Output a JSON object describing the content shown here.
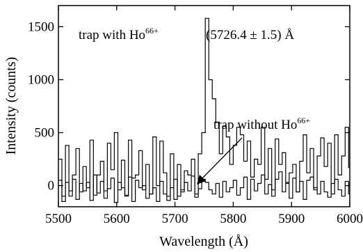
{
  "chart_data": {
    "type": "line",
    "xlabel": "Wavelength (Å)",
    "ylabel": "Intensity (counts)",
    "xlim": [
      5500,
      6000
    ],
    "ylim": [
      -200,
      1700
    ],
    "xticks": [
      5500,
      5600,
      5700,
      5800,
      5900,
      6000
    ],
    "yticks": [
      0,
      500,
      1000,
      1500
    ],
    "x_tick_labels": [
      "5500",
      "5600",
      "5700",
      "5800",
      "5900",
      "6000"
    ],
    "y_tick_labels": [
      "0",
      "500",
      "1000",
      "1500"
    ],
    "grid": false,
    "legend": "none",
    "step": 6,
    "annotations": {
      "with_label": "trap with Ho",
      "with_sup": "66+",
      "peak_label": "(5726.4 ± 1.5) Å",
      "without_label": "trap without Ho",
      "without_sup": "66+"
    },
    "series": [
      {
        "x_start": 5500,
        "values": [
          250,
          -100,
          380,
          -50,
          100,
          350,
          -60,
          180,
          -20,
          430,
          -90,
          100,
          230,
          -50,
          400,
          150,
          500,
          -40,
          240,
          -100,
          430,
          70,
          100,
          330,
          -40,
          200,
          -80,
          460,
          0,
          420,
          120,
          -100,
          300,
          -130,
          200,
          -60,
          140,
          100,
          250,
          -80,
          300,
          500,
          1580,
          1000,
          820,
          600,
          300,
          560,
          460,
          200,
          380,
          550,
          480,
          230,
          420,
          80,
          250,
          200,
          550,
          60,
          350,
          -40,
          440,
          200,
          310,
          30,
          120,
          200,
          -60,
          230,
          480,
          120,
          350,
          -40,
          280,
          450,
          180,
          400,
          -80,
          480,
          100,
          280,
          550,
          170,
          -80,
          200,
          580,
          100,
          20
        ]
      },
      {
        "x_start": 5500,
        "values": [
          50,
          -150,
          30,
          -100,
          60,
          -130,
          20,
          -50,
          30,
          -140,
          100,
          -70,
          40,
          -120,
          -30,
          70,
          -160,
          30,
          -20,
          -90,
          80,
          -150,
          50,
          -20,
          0,
          -120,
          -80,
          -20,
          -150,
          40,
          -80,
          -140,
          -20,
          60,
          -100,
          -40,
          30,
          -50,
          90,
          -110,
          -30,
          60,
          30,
          -40,
          -80,
          20,
          -110,
          40,
          -60,
          -20,
          50,
          -90,
          -20,
          80,
          -130,
          60,
          -50,
          20,
          100,
          -80,
          10,
          -100,
          60,
          130,
          -60,
          20,
          -120,
          70,
          -60,
          40,
          -130,
          50,
          80,
          -20,
          -80,
          40,
          -60,
          -110,
          20,
          60,
          -40,
          -100,
          40,
          -80,
          70,
          100,
          -60,
          -120,
          80
        ]
      }
    ]
  }
}
